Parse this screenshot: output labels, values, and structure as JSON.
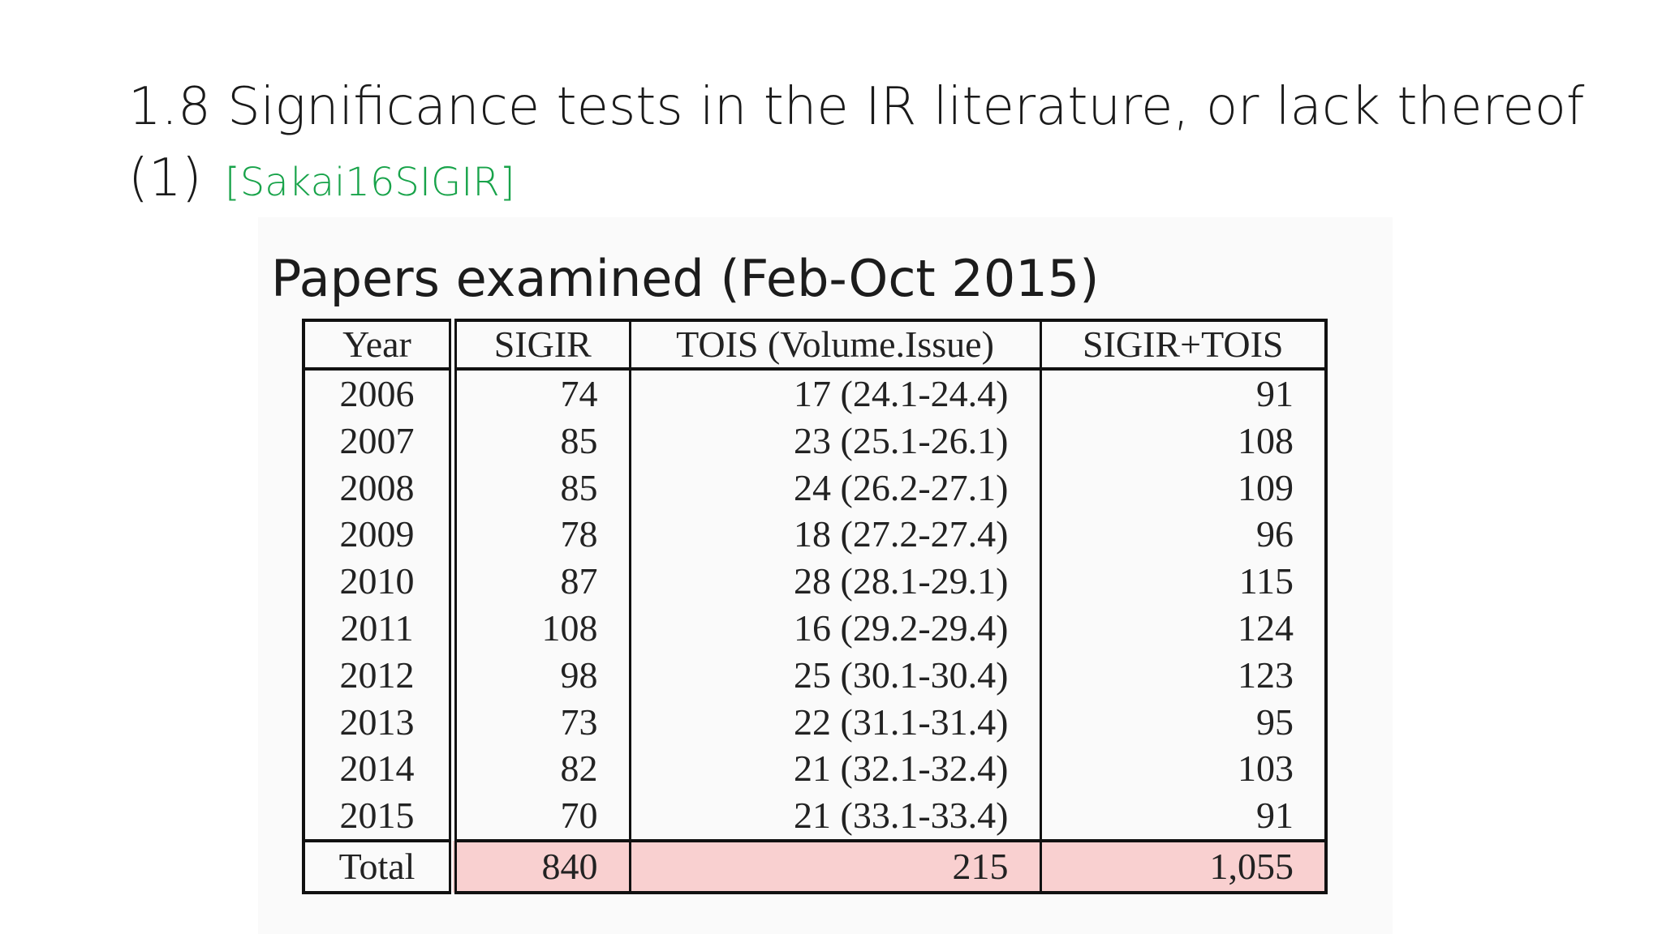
{
  "slide": {
    "title": "1.8 Significance tests in the IR literature, or lack thereof (1)",
    "citation": "[Sakai16SIGIR]"
  },
  "figure": {
    "heading": "Papers examined (Feb-Oct 2015)",
    "table": {
      "headers": [
        "Year",
        "SIGIR",
        "TOIS (Volume.Issue)",
        "SIGIR+TOIS"
      ],
      "rows": [
        [
          "2006",
          "74",
          "17 (24.1-24.4)",
          "91"
        ],
        [
          "2007",
          "85",
          "23 (25.1-26.1)",
          "108"
        ],
        [
          "2008",
          "85",
          "24 (26.2-27.1)",
          "109"
        ],
        [
          "2009",
          "78",
          "18 (27.2-27.4)",
          "96"
        ],
        [
          "2010",
          "87",
          "28 (28.1-29.1)",
          "115"
        ],
        [
          "2011",
          "108",
          "16 (29.2-29.4)",
          "124"
        ],
        [
          "2012",
          "98",
          "25 (30.1-30.4)",
          "123"
        ],
        [
          "2013",
          "73",
          "22 (31.1-31.4)",
          "95"
        ],
        [
          "2014",
          "82",
          "21 (32.1-32.4)",
          "103"
        ],
        [
          "2015",
          "70",
          "21 (33.1-33.4)",
          "91"
        ]
      ],
      "total": [
        "Total",
        "840",
        "215",
        "1,055"
      ],
      "highlight_color": "#f9d0d0"
    }
  }
}
